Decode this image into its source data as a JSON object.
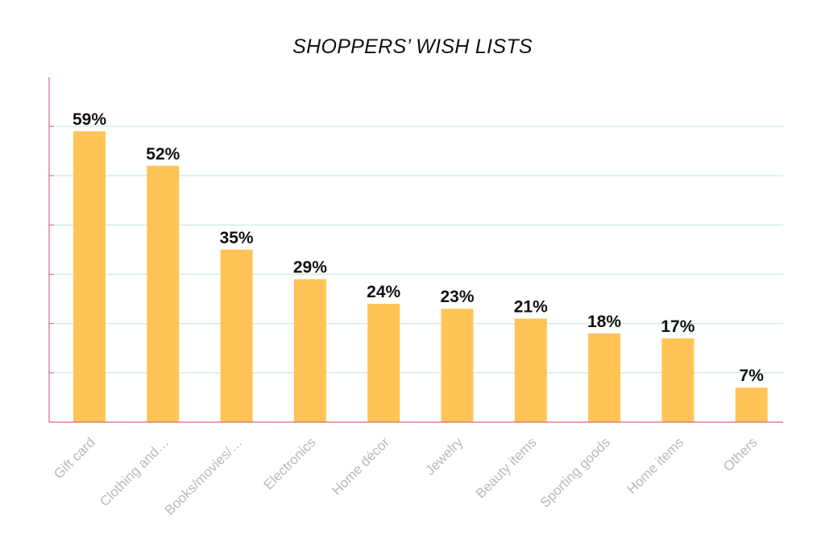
{
  "chart_data": {
    "type": "bar",
    "title": "SHOPPERS’ WISH LISTS",
    "categories": [
      "Gift card",
      "Clothing and…",
      "Books/movies/…",
      "Electronics",
      "Home décor",
      "Jewelry",
      "Beauty items",
      "Sporting goods",
      "Home items",
      "Others"
    ],
    "values": [
      59,
      52,
      35,
      29,
      24,
      23,
      21,
      18,
      17,
      7
    ],
    "value_labels": [
      "59%",
      "52%",
      "35%",
      "29%",
      "24%",
      "23%",
      "21%",
      "18%",
      "17%",
      "7%"
    ],
    "unit": "%",
    "xlabel": "",
    "ylabel": "",
    "ylim": [
      0,
      60
    ],
    "grid": true,
    "legend": "none",
    "colors": {
      "bar": "#FFC455",
      "grid": "#BFE6DC",
      "axis": "#D9667F",
      "tick_label": "#B9B9B9",
      "value_label": "#111111"
    }
  }
}
